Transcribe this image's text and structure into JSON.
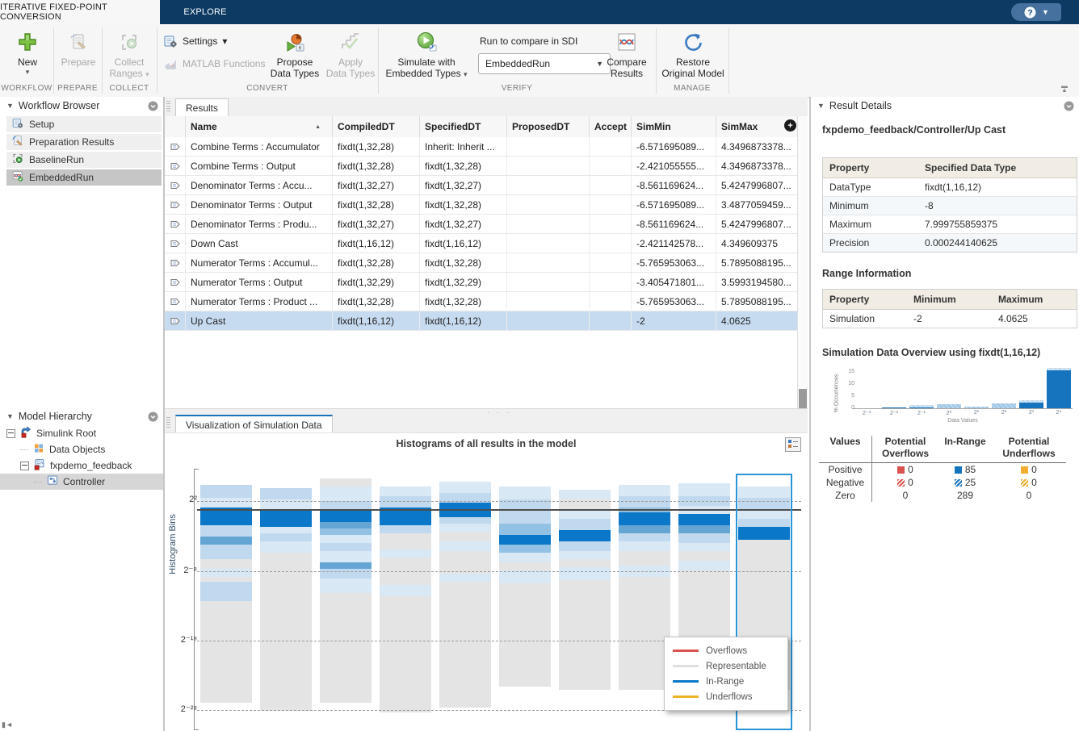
{
  "app": {
    "tab_conversion": "ITERATIVE FIXED-POINT CONVERSION",
    "tab_explore": "EXPLORE",
    "help": "?"
  },
  "ribbon": {
    "sections": {
      "workflow": {
        "label": "WORKFLOW",
        "new_label": "New"
      },
      "prepare": {
        "label": "PREPARE",
        "prepare_label": "Prepare"
      },
      "collect": {
        "label": "COLLECT",
        "collect_label": "Collect\nRanges"
      },
      "convert": {
        "label": "CONVERT",
        "settings_label": "Settings",
        "matlab_functions_label": "MATLAB Functions",
        "propose_label": "Propose\nData Types",
        "apply_label": "Apply\nData Types"
      },
      "verify": {
        "label": "VERIFY",
        "simulate_label": "Simulate with\nEmbedded Types",
        "run_compare_label": "Run to compare in SDI",
        "run_value": "EmbeddedRun",
        "compare_label": "Compare\nResults"
      },
      "manage": {
        "label": "MANAGE",
        "restore_label": "Restore\nOriginal Model"
      }
    }
  },
  "workflow_browser": {
    "title": "Workflow Browser",
    "items": [
      {
        "label": "Setup",
        "icon": "setup-icon",
        "selected": false
      },
      {
        "label": "Preparation Results",
        "icon": "preparation-results-icon",
        "selected": false
      },
      {
        "label": "BaselineRun",
        "icon": "baseline-run-icon",
        "selected": false
      },
      {
        "label": "EmbeddedRun",
        "icon": "embedded-run-icon",
        "selected": true
      }
    ]
  },
  "model_hierarchy": {
    "title": "Model Hierarchy",
    "items": [
      {
        "label": "Simulink Root",
        "icon": "simulink-root-icon",
        "depth": 0,
        "expander": true,
        "selected": false
      },
      {
        "label": "Data Objects",
        "icon": "data-objects-icon",
        "depth": 1,
        "expander": false,
        "selected": false
      },
      {
        "label": "fxpdemo_feedback",
        "icon": "model-icon",
        "depth": 1,
        "expander": true,
        "selected": false
      },
      {
        "label": "Controller",
        "icon": "subsystem-icon",
        "depth": 2,
        "expander": false,
        "selected": true
      }
    ]
  },
  "results": {
    "tab": "Results",
    "columns": [
      "Name",
      "CompiledDT",
      "SpecifiedDT",
      "ProposedDT",
      "Accept",
      "SimMin",
      "SimMax"
    ],
    "sort": {
      "column": "Name",
      "direction": "ascending"
    },
    "rows": [
      {
        "name": "Combine Terms : Accumulator",
        "compiled": "fixdt(1,32,28)",
        "specified": "Inherit: Inherit ...",
        "proposed": "",
        "accept": "",
        "simmin": "-6.571695089...",
        "simmax": "4.3496873378...",
        "selected": false
      },
      {
        "name": "Combine Terms : Output",
        "compiled": "fixdt(1,32,28)",
        "specified": "fixdt(1,32,28)",
        "proposed": "",
        "accept": "",
        "simmin": "-2.421055555...",
        "simmax": "4.3496873378...",
        "selected": false
      },
      {
        "name": "Denominator Terms : Accu...",
        "compiled": "fixdt(1,32,27)",
        "specified": "fixdt(1,32,27)",
        "proposed": "",
        "accept": "",
        "simmin": "-8.561169624...",
        "simmax": "5.4247996807...",
        "selected": false
      },
      {
        "name": "Denominator Terms : Output",
        "compiled": "fixdt(1,32,28)",
        "specified": "fixdt(1,32,28)",
        "proposed": "",
        "accept": "",
        "simmin": "-6.571695089...",
        "simmax": "3.4877059459...",
        "selected": false
      },
      {
        "name": "Denominator Terms : Produ...",
        "compiled": "fixdt(1,32,27)",
        "specified": "fixdt(1,32,27)",
        "proposed": "",
        "accept": "",
        "simmin": "-8.561169624...",
        "simmax": "5.4247996807...",
        "selected": false
      },
      {
        "name": "Down Cast",
        "compiled": "fixdt(1,16,12)",
        "specified": "fixdt(1,16,12)",
        "proposed": "",
        "accept": "",
        "simmin": "-2.421142578...",
        "simmax": "4.349609375",
        "selected": false
      },
      {
        "name": "Numerator Terms : Accumul...",
        "compiled": "fixdt(1,32,28)",
        "specified": "fixdt(1,32,28)",
        "proposed": "",
        "accept": "",
        "simmin": "-5.765953063...",
        "simmax": "5.7895088195...",
        "selected": false
      },
      {
        "name": "Numerator Terms : Output",
        "compiled": "fixdt(1,32,29)",
        "specified": "fixdt(1,32,29)",
        "proposed": "",
        "accept": "",
        "simmin": "-3.405471801...",
        "simmax": "3.5993194580...",
        "selected": false
      },
      {
        "name": "Numerator Terms : Product ...",
        "compiled": "fixdt(1,32,28)",
        "specified": "fixdt(1,32,28)",
        "proposed": "",
        "accept": "",
        "simmin": "-5.765953063...",
        "simmax": "5.7895088195...",
        "selected": false
      },
      {
        "name": "Up Cast",
        "compiled": "fixdt(1,16,12)",
        "specified": "fixdt(1,16,12)",
        "proposed": "",
        "accept": "",
        "simmin": "-2",
        "simmax": "4.0625",
        "selected": true
      }
    ]
  },
  "visualization": {
    "tab": "Visualization of Simulation Data"
  },
  "result_details": {
    "title": "Result Details",
    "path": "fxpdemo_feedback/Controller/Up Cast",
    "specified_table": {
      "headers": [
        "Property",
        "Specified Data Type"
      ],
      "rows": [
        [
          "DataType",
          "fixdt(1,16,12)"
        ],
        [
          "Minimum",
          "-8"
        ],
        [
          "Maximum",
          "7.999755859375"
        ],
        [
          "Precision",
          "0.000244140625"
        ]
      ]
    },
    "range_heading": "Range Information",
    "range_table": {
      "headers": [
        "Property",
        "Minimum",
        "Maximum"
      ],
      "rows": [
        [
          "Simulation",
          "-2",
          "4.0625"
        ]
      ]
    },
    "overview_heading": "Simulation Data Overview using fixdt(1,16,12)",
    "values_table": {
      "headers": [
        "Values",
        "Potential\nOverflows",
        "In-Range",
        "Potential\nUnderflows"
      ],
      "rows": [
        {
          "label": "Positive",
          "swatch": "solid",
          "overflows": "0",
          "inrange": "85",
          "underflows": "0"
        },
        {
          "label": "Negative",
          "swatch": "hatched",
          "overflows": "0",
          "inrange": "25",
          "underflows": "0"
        },
        {
          "label": "Zero",
          "swatch": "none",
          "overflows": "0",
          "inrange": "289",
          "underflows": "0"
        }
      ]
    }
  },
  "chart_data": [
    {
      "type": "column-histograms",
      "title": "Histograms of all results in the model",
      "ylabel": "Histogram Bins",
      "yticks": [
        "2²",
        "2⁻⁸",
        "2⁻¹⁸",
        "2⁻²⁸"
      ],
      "ytick_offsets": [
        28,
        115,
        201,
        287
      ],
      "reference_line_offset": 39,
      "selected_column": 9,
      "legend": [
        {
          "label": "Overflows",
          "color": "#d9534f"
        },
        {
          "label": "Representable",
          "color": "#e0e0e0"
        },
        {
          "label": "In-Range",
          "color": "#0a77c8"
        },
        {
          "label": "Underflows",
          "color": "#eeb427"
        }
      ],
      "columns": [
        {
          "top": 8,
          "segs": [
            [
              "b2",
              16
            ],
            [
              "b1",
              12
            ],
            [
              "b5",
              22
            ],
            [
              "b2",
              14
            ],
            [
              "b4",
              10
            ],
            [
              "b2",
              18
            ],
            [
              "gray",
              12
            ],
            [
              "b1",
              10
            ],
            [
              "gray",
              6
            ],
            [
              "b2",
              24
            ],
            [
              "gray",
              126
            ]
          ]
        },
        {
          "top": 12,
          "segs": [
            [
              "b2",
              14
            ],
            [
              "b1",
              12
            ],
            [
              "b5",
              22
            ],
            [
              "b1",
              8
            ],
            [
              "b2",
              10
            ],
            [
              "b1",
              14
            ],
            [
              "gray",
              196
            ]
          ]
        },
        {
          "top": 0,
          "segs": [
            [
              "gray",
              10
            ],
            [
              "b1",
              18
            ],
            [
              "b2",
              12
            ],
            [
              "b5",
              14
            ],
            [
              "b4",
              8
            ],
            [
              "b3",
              8
            ],
            [
              "b1",
              10
            ],
            [
              "b2",
              10
            ],
            [
              "b1",
              14
            ],
            [
              "b4",
              8
            ],
            [
              "b2",
              12
            ],
            [
              "b1",
              18
            ],
            [
              "gray",
              136
            ]
          ]
        },
        {
          "top": 10,
          "segs": [
            [
              "b1",
              12
            ],
            [
              "b2",
              14
            ],
            [
              "b5",
              22
            ],
            [
              "b2",
              10
            ],
            [
              "gray",
              20
            ],
            [
              "b1",
              10
            ],
            [
              "gray",
              34
            ],
            [
              "b1",
              14
            ],
            [
              "gray",
              144
            ]
          ]
        },
        {
          "top": 4,
          "segs": [
            [
              "b1",
              14
            ],
            [
              "b2",
              12
            ],
            [
              "b5",
              18
            ],
            [
              "b2",
              8
            ],
            [
              "b1",
              10
            ],
            [
              "gray",
              12
            ],
            [
              "b1",
              12
            ],
            [
              "gray",
              28
            ],
            [
              "b1",
              10
            ],
            [
              "gray",
              156
            ]
          ]
        },
        {
          "top": 10,
          "segs": [
            [
              "b1",
              16
            ],
            [
              "b2",
              18
            ],
            [
              "b2",
              12
            ],
            [
              "b3",
              14
            ],
            [
              "b5",
              12
            ],
            [
              "b3",
              10
            ],
            [
              "b1",
              12
            ],
            [
              "gray",
              10
            ],
            [
              "b1",
              16
            ],
            [
              "gray",
              128
            ]
          ]
        },
        {
          "top": 14,
          "segs": [
            [
              "b1",
              12
            ],
            [
              "gray",
              12
            ],
            [
              "b1",
              12
            ],
            [
              "b2",
              14
            ],
            [
              "b5",
              14
            ],
            [
              "b2",
              12
            ],
            [
              "b1",
              10
            ],
            [
              "gray",
              10
            ],
            [
              "b1",
              16
            ],
            [
              "gray",
              136
            ]
          ]
        },
        {
          "top": 8,
          "segs": [
            [
              "b1",
              14
            ],
            [
              "b2",
              14
            ],
            [
              "b3",
              6
            ],
            [
              "b5",
              16
            ],
            [
              "b4",
              10
            ],
            [
              "b2",
              10
            ],
            [
              "b1",
              12
            ],
            [
              "gray",
              18
            ],
            [
              "b1",
              14
            ],
            [
              "gray",
              140
            ]
          ]
        },
        {
          "top": 6,
          "segs": [
            [
              "b1",
              16
            ],
            [
              "b2",
              12
            ],
            [
              "b1",
              10
            ],
            [
              "b5",
              14
            ],
            [
              "b4",
              10
            ],
            [
              "b2",
              12
            ],
            [
              "b1",
              10
            ],
            [
              "gray",
              12
            ],
            [
              "b1",
              12
            ],
            [
              "gray",
              158
            ]
          ]
        },
        {
          "top": 10,
          "segs": [
            [
              "b1",
              14
            ],
            [
              "b2",
              16
            ],
            [
              "b1",
              10
            ],
            [
              "b2",
              10
            ],
            [
              "b5",
              16
            ],
            [
              "gray",
              186
            ]
          ]
        }
      ]
    },
    {
      "type": "bar",
      "title": "Simulation Data Overview using fixdt(1,16,12)",
      "xlabel": "Data Values",
      "ylabel": "% Occurrences",
      "yticks": [
        0,
        5,
        10,
        15
      ],
      "ylim": [
        0,
        17
      ],
      "categories": [
        "2⁻³",
        "2⁻²",
        "2⁻¹",
        "2⁰",
        "2¹",
        "2²",
        "2³",
        "2⁴"
      ],
      "values": [
        0,
        0.5,
        1.4,
        1.7,
        0.6,
        1.9,
        3.2,
        16.8
      ],
      "bar_styles": [
        "none",
        "solid",
        "solid-cap",
        "light",
        "light",
        "light",
        "solid-cap",
        "solid-cap"
      ]
    }
  ],
  "colors": {
    "toolstrip": "#0d3a63",
    "accent_blue": "#0a77c8",
    "selection_row": "#c7dbf0",
    "overflow_red": "#d9534f",
    "underflow_yellow": "#f0ad2e",
    "representable_gray": "#e0e0e0"
  }
}
